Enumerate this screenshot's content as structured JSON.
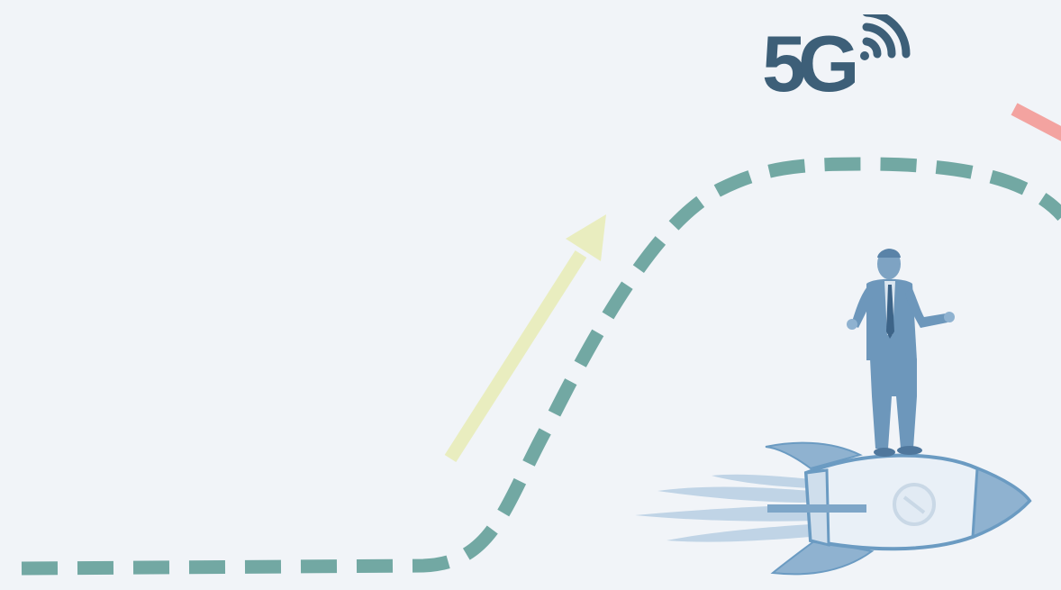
{
  "logo": {
    "text": "5G",
    "color": "#3d5f78",
    "icon": "wifi-signal-icon"
  },
  "colors": {
    "background": "#f1f4f8",
    "growth_path": "#72a8a3",
    "up_arrow": "#e9edbf",
    "accent_arrow": "#f3a3a0",
    "rocket_body": "#e9f0f7",
    "rocket_outline": "#6b9bc2",
    "figure": "#6d97bb",
    "flame": "#a9c4dc"
  },
  "illustration": {
    "icon": "businessman-on-rocket-icon"
  }
}
